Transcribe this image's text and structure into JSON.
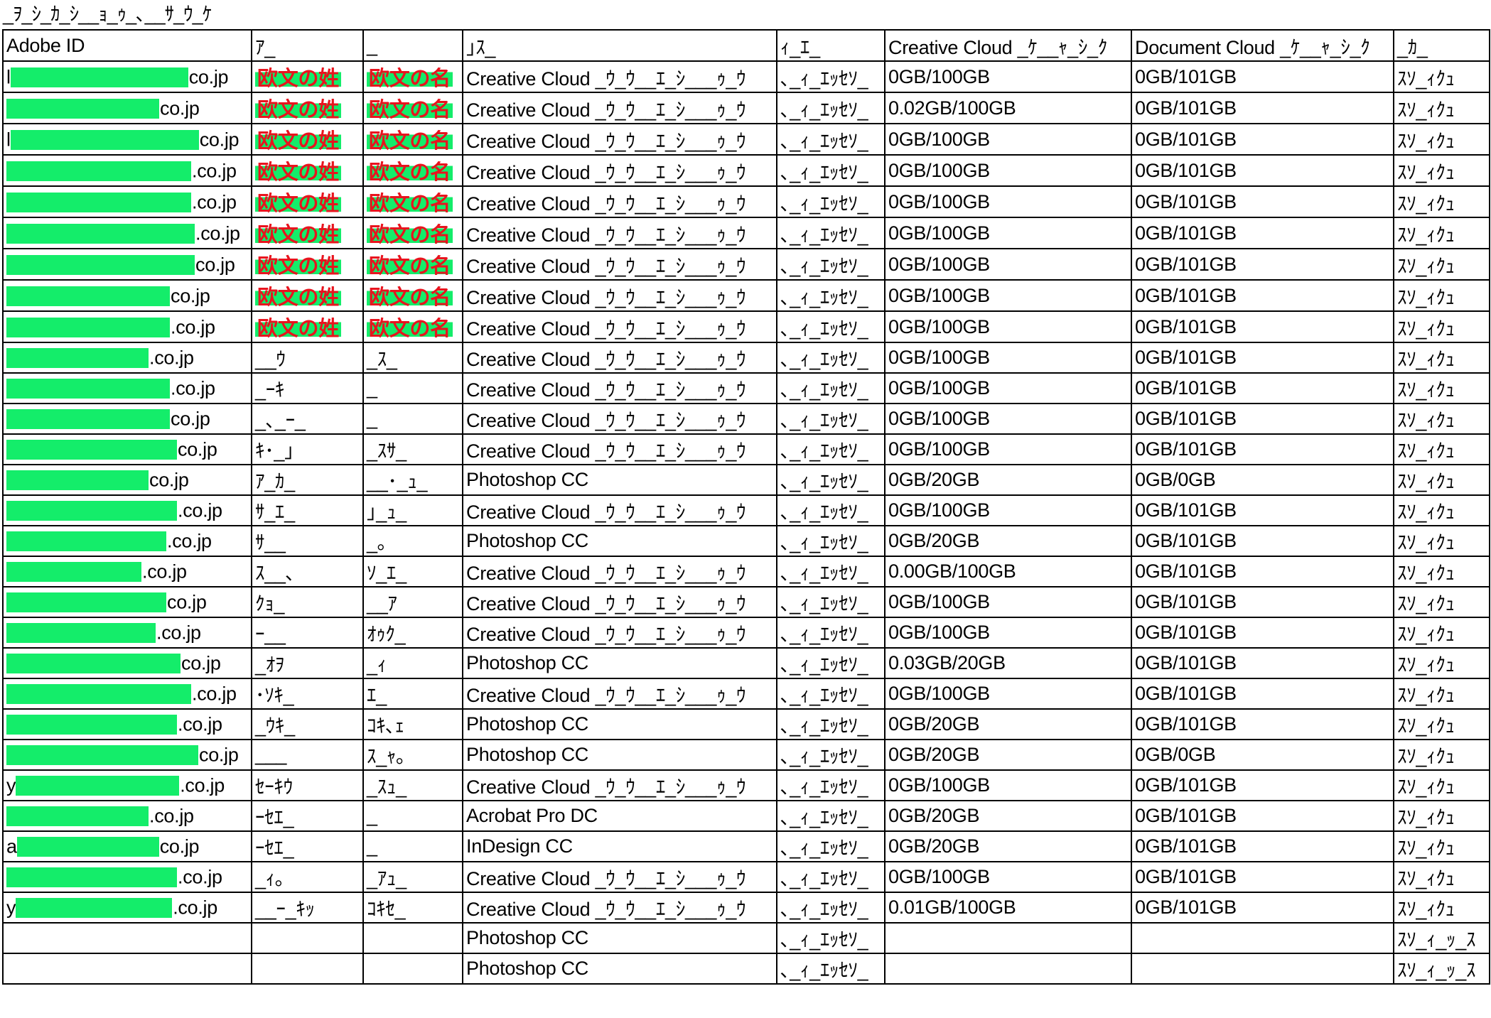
{
  "title": "_ｦ_ｼ_ｶ_ｼ__ｮ_ｩ_､__ｻ_ｳ_ｹ",
  "colors": {
    "redaction": "#14ed6a",
    "name_placeholder": "#e8141e"
  },
  "headers": [
    "Adobe ID",
    "ｱ_",
    "_",
    "｣ｽ_",
    "ｨ_ｴ_",
    "Creative Cloud _ｹ__ｬ_ｼ_ｸ",
    "Document Cloud _ｹ__ｬ_ｼ_ｸ",
    "_ｶ_"
  ],
  "rows": [
    {
      "id_prefix": "l",
      "id_suffix": "co.jp",
      "last": "欧文の姓",
      "first": "欧文の名",
      "product": "Creative Cloud _ｳ_ｳ__ｴ_ｼ___ｩ_ｳ",
      "type": "､_ｨ_ｴｯｾｿ_",
      "cc": "0GB/100GB",
      "dc": "0GB/101GB",
      "status": "ｽｿ_ｨｸｭ",
      "placeholder": true
    },
    {
      "id_prefix": "",
      "id_suffix": "co.jp",
      "last": "欧文の姓",
      "first": "欧文の名",
      "product": "Creative Cloud _ｳ_ｳ__ｴ_ｼ___ｩ_ｳ",
      "type": "､_ｨ_ｴｯｾｿ_",
      "cc": "0.02GB/100GB",
      "dc": "0GB/101GB",
      "status": "ｽｿ_ｨｸｭ",
      "placeholder": true
    },
    {
      "id_prefix": "l",
      "id_suffix": "co.jp",
      "last": "欧文の姓",
      "first": "欧文の名",
      "product": "Creative Cloud _ｳ_ｳ__ｴ_ｼ___ｩ_ｳ",
      "type": "､_ｨ_ｴｯｾｿ_",
      "cc": "0GB/100GB",
      "dc": "0GB/101GB",
      "status": "ｽｿ_ｨｸｭ",
      "placeholder": true
    },
    {
      "id_prefix": "",
      "id_suffix": ".co.jp",
      "last": "欧文の姓",
      "first": "欧文の名",
      "product": "Creative Cloud _ｳ_ｳ__ｴ_ｼ___ｩ_ｳ",
      "type": "､_ｨ_ｴｯｾｿ_",
      "cc": "0GB/100GB",
      "dc": "0GB/101GB",
      "status": "ｽｿ_ｨｸｭ",
      "placeholder": true
    },
    {
      "id_prefix": "",
      "id_suffix": ".co.jp",
      "last": "欧文の姓",
      "first": "欧文の名",
      "product": "Creative Cloud _ｳ_ｳ__ｴ_ｼ___ｩ_ｳ",
      "type": "､_ｨ_ｴｯｾｿ_",
      "cc": "0GB/100GB",
      "dc": "0GB/101GB",
      "status": "ｽｿ_ｨｸｭ",
      "placeholder": true
    },
    {
      "id_prefix": "",
      "id_suffix": ".co.jp",
      "last": "欧文の姓",
      "first": "欧文の名",
      "product": "Creative Cloud _ｳ_ｳ__ｴ_ｼ___ｩ_ｳ",
      "type": "､_ｨ_ｴｯｾｿ_",
      "cc": "0GB/100GB",
      "dc": "0GB/101GB",
      "status": "ｽｿ_ｨｸｭ",
      "placeholder": true
    },
    {
      "id_prefix": "",
      "id_suffix": "co.jp",
      "last": "欧文の姓",
      "first": "欧文の名",
      "product": "Creative Cloud _ｳ_ｳ__ｴ_ｼ___ｩ_ｳ",
      "type": "､_ｨ_ｴｯｾｿ_",
      "cc": "0GB/100GB",
      "dc": "0GB/101GB",
      "status": "ｽｿ_ｨｸｭ",
      "placeholder": true
    },
    {
      "id_prefix": "",
      "id_suffix": "co.jp",
      "last": "欧文の姓",
      "first": "欧文の名",
      "product": "Creative Cloud _ｳ_ｳ__ｴ_ｼ___ｩ_ｳ",
      "type": "､_ｨ_ｴｯｾｿ_",
      "cc": "0GB/100GB",
      "dc": "0GB/101GB",
      "status": "ｽｿ_ｨｸｭ",
      "placeholder": true
    },
    {
      "id_prefix": "",
      "id_suffix": ".co.jp",
      "last": "欧文の姓",
      "first": "欧文の名",
      "product": "Creative Cloud _ｳ_ｳ__ｴ_ｼ___ｩ_ｳ",
      "type": "､_ｨ_ｴｯｾｿ_",
      "cc": "0GB/100GB",
      "dc": "0GB/101GB",
      "status": "ｽｿ_ｨｸｭ",
      "placeholder": true
    },
    {
      "id_prefix": "",
      "id_suffix": ".co.jp",
      "last": "__ｳ",
      "first": "_ｽ_",
      "product": "Creative Cloud _ｳ_ｳ__ｴ_ｼ___ｩ_ｳ",
      "type": "､_ｨ_ｴｯｾｿ_",
      "cc": "0GB/100GB",
      "dc": "0GB/101GB",
      "status": "ｽｿ_ｨｸｭ"
    },
    {
      "id_prefix": "",
      "id_suffix": ".co.jp",
      "last": "_ｰｷ",
      "first": "_",
      "product": "Creative Cloud _ｳ_ｳ__ｴ_ｼ___ｩ_ｳ",
      "type": "､_ｨ_ｴｯｾｿ_",
      "cc": "0GB/100GB",
      "dc": "0GB/101GB",
      "status": "ｽｿ_ｨｸｭ"
    },
    {
      "id_prefix": "",
      "id_suffix": "co.jp",
      "last": "_､_ｰ_",
      "first": "_",
      "product": "Creative Cloud _ｳ_ｳ__ｴ_ｼ___ｩ_ｳ",
      "type": "､_ｨ_ｴｯｾｿ_",
      "cc": "0GB/100GB",
      "dc": "0GB/101GB",
      "status": "ｽｿ_ｨｸｭ"
    },
    {
      "id_prefix": "",
      "id_suffix": "co.jp",
      "last": "ｷ･_｣",
      "first": "_ｽｻ_",
      "product": "Creative Cloud _ｳ_ｳ__ｴ_ｼ___ｩ_ｳ",
      "type": "､_ｨ_ｴｯｾｿ_",
      "cc": "0GB/100GB",
      "dc": "0GB/101GB",
      "status": "ｽｿ_ｨｸｭ"
    },
    {
      "id_prefix": "",
      "id_suffix": "co.jp",
      "last": "ｱ_ｶ_",
      "first": "__･_ｭ_",
      "product": "Photoshop CC",
      "type": "､_ｨ_ｴｯｾｿ_",
      "cc": "0GB/20GB",
      "dc": "0GB/0GB",
      "status": "ｽｿ_ｨｸｭ"
    },
    {
      "id_prefix": "",
      "id_suffix": ".co.jp",
      "last": "ｻ_ｴ_",
      "first": "｣_ｭ_",
      "product": "Creative Cloud _ｳ_ｳ__ｴ_ｼ___ｩ_ｳ",
      "type": "､_ｨ_ｴｯｾｿ_",
      "cc": "0GB/100GB",
      "dc": "0GB/101GB",
      "status": "ｽｿ_ｨｸｭ"
    },
    {
      "id_prefix": "",
      "id_suffix": ".co.jp",
      "last": "ｻ__",
      "first": "_｡",
      "product": "Photoshop CC",
      "type": "､_ｨ_ｴｯｾｿ_",
      "cc": "0GB/20GB",
      "dc": "0GB/101GB",
      "status": "ｽｿ_ｨｸｭ"
    },
    {
      "id_prefix": "",
      "id_suffix": ".co.jp",
      "last": "ｽ__､",
      "first": "ｿ_ｴ_",
      "product": "Creative Cloud _ｳ_ｳ__ｴ_ｼ___ｩ_ｳ",
      "type": "､_ｨ_ｴｯｾｿ_",
      "cc": "0.00GB/100GB",
      "dc": "0GB/101GB",
      "status": "ｽｿ_ｨｸｭ"
    },
    {
      "id_prefix": "",
      "id_suffix": "co.jp",
      "last": "ｸｮ_",
      "first": "__ｱ",
      "product": "Creative Cloud _ｳ_ｳ__ｴ_ｼ___ｩ_ｳ",
      "type": "､_ｨ_ｴｯｾｿ_",
      "cc": "0GB/100GB",
      "dc": "0GB/101GB",
      "status": "ｽｿ_ｨｸｭ"
    },
    {
      "id_prefix": "",
      "id_suffix": ".co.jp",
      "last": "ｰ__",
      "first": "ｵｩｸ_",
      "product": "Creative Cloud _ｳ_ｳ__ｴ_ｼ___ｩ_ｳ",
      "type": "､_ｨ_ｴｯｾｿ_",
      "cc": "0GB/100GB",
      "dc": "0GB/101GB",
      "status": "ｽｿ_ｨｸｭ"
    },
    {
      "id_prefix": "",
      "id_suffix": "co.jp",
      "last": "_ｵｦ",
      "first": "_ｨ",
      "product": "Photoshop CC",
      "type": "､_ｨ_ｴｯｾｿ_",
      "cc": "0.03GB/20GB",
      "dc": "0GB/101GB",
      "status": "ｽｿ_ｨｸｭ"
    },
    {
      "id_prefix": "",
      "id_suffix": ".co.jp",
      "last": "･ｿｷ_",
      "first": "ｴ_",
      "product": "Creative Cloud _ｳ_ｳ__ｴ_ｼ___ｩ_ｳ",
      "type": "､_ｨ_ｴｯｾｿ_",
      "cc": "0GB/100GB",
      "dc": "0GB/101GB",
      "status": "ｽｿ_ｨｸｭ"
    },
    {
      "id_prefix": "",
      "id_suffix": ".co.jp",
      "last": "_ｳｷ_",
      "first": "ｺｷ､ｪ",
      "product": "Photoshop CC",
      "type": "､_ｨ_ｴｯｾｿ_",
      "cc": "0GB/20GB",
      "dc": "0GB/101GB",
      "status": "ｽｿ_ｨｸｭ"
    },
    {
      "id_prefix": "",
      "id_suffix": "co.jp",
      "last": "___",
      "first": "ｽ_ｬ｡",
      "product": "Photoshop CC",
      "type": "､_ｨ_ｴｯｾｿ_",
      "cc": "0GB/20GB",
      "dc": "0GB/0GB",
      "status": "ｽｿ_ｨｸｭ"
    },
    {
      "id_prefix": "y",
      "id_suffix": ".co.jp",
      "last": "ｾｰｷｳ",
      "first": "_ｽｭ_",
      "product": "Creative Cloud _ｳ_ｳ__ｴ_ｼ___ｩ_ｳ",
      "type": "､_ｨ_ｴｯｾｿ_",
      "cc": "0GB/100GB",
      "dc": "0GB/101GB",
      "status": "ｽｿ_ｨｸｭ"
    },
    {
      "id_prefix": "",
      "id_suffix": ".co.jp",
      "last": "ｰｾｴ_",
      "first": "_",
      "product": "Acrobat Pro DC",
      "type": "､_ｨ_ｴｯｾｿ_",
      "cc": "0GB/20GB",
      "dc": "0GB/101GB",
      "status": "ｽｿ_ｨｸｭ"
    },
    {
      "id_prefix": "a",
      "id_suffix": "co.jp",
      "last": "ｰｾｴ_",
      "first": "_",
      "product": "InDesign CC",
      "type": "､_ｨ_ｴｯｾｿ_",
      "cc": "0GB/20GB",
      "dc": "0GB/101GB",
      "status": "ｽｿ_ｨｸｭ"
    },
    {
      "id_prefix": "",
      "id_suffix": ".co.jp",
      "last": "_ｨ｡",
      "first": "_ｱｭ_",
      "product": "Creative Cloud _ｳ_ｳ__ｴ_ｼ___ｩ_ｳ",
      "type": "､_ｨ_ｴｯｾｿ_",
      "cc": "0GB/100GB",
      "dc": "0GB/101GB",
      "status": "ｽｿ_ｨｸｭ"
    },
    {
      "id_prefix": "y",
      "id_suffix": ".co.jp",
      "last": "__ｰ_ｷｯ",
      "first": "ｺｷｾ_",
      "product": "Creative Cloud _ｳ_ｳ__ｴ_ｼ___ｩ_ｳ",
      "type": "､_ｨ_ｴｯｾｿ_",
      "cc": "0.01GB/100GB",
      "dc": "0GB/101GB",
      "status": "ｽｿ_ｨｸｭ"
    },
    {
      "id_prefix": "",
      "id_suffix": "",
      "last": "",
      "first": "",
      "product": "Photoshop CC",
      "type": "､_ｨ_ｴｯｾｿ_",
      "cc": "",
      "dc": "",
      "status": "ｽｿ_ｨ_ｯ_ｽ",
      "empty_id": true
    },
    {
      "id_prefix": "",
      "id_suffix": "",
      "last": "",
      "first": "",
      "product": "Photoshop CC",
      "type": "､_ｨ_ｴｯｾｿ_",
      "cc": "",
      "dc": "",
      "status": "ｽｿ_ｨ_ｯ_ｽ",
      "empty_id": true
    }
  ]
}
